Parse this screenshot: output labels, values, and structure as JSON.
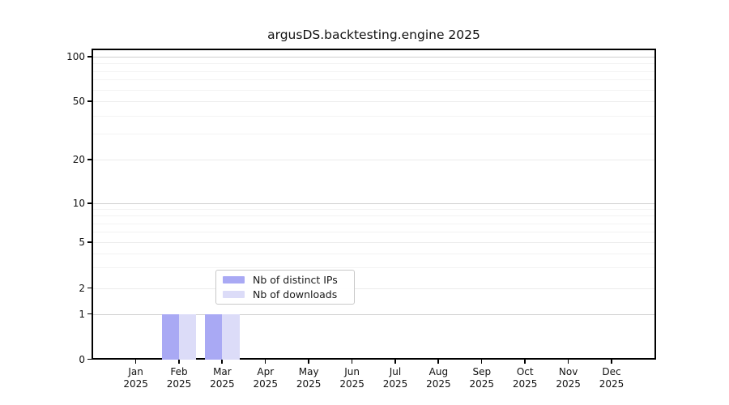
{
  "chart_data": {
    "type": "bar",
    "title": "argusDS.backtesting.engine 2025",
    "year": "2025",
    "categories": [
      "Jan",
      "Feb",
      "Mar",
      "Apr",
      "May",
      "Jun",
      "Jul",
      "Aug",
      "Sep",
      "Oct",
      "Nov",
      "Dec"
    ],
    "series": [
      {
        "name": "Nb of distinct IPs",
        "color": "#a9a9f4",
        "values": [
          0,
          1,
          1,
          0,
          0,
          0,
          0,
          0,
          0,
          0,
          0,
          0
        ]
      },
      {
        "name": "Nb of downloads",
        "color": "#dcdcf8",
        "values": [
          0,
          1,
          1,
          0,
          0,
          0,
          0,
          0,
          0,
          0,
          0,
          0
        ]
      }
    ],
    "y_ticks": [
      0,
      1,
      2,
      5,
      10,
      20,
      50,
      100
    ],
    "xlabel": "",
    "ylabel": "",
    "y_scale": "log",
    "ylim": [
      0,
      100
    ],
    "grid": true,
    "legend_position": "lower center"
  }
}
